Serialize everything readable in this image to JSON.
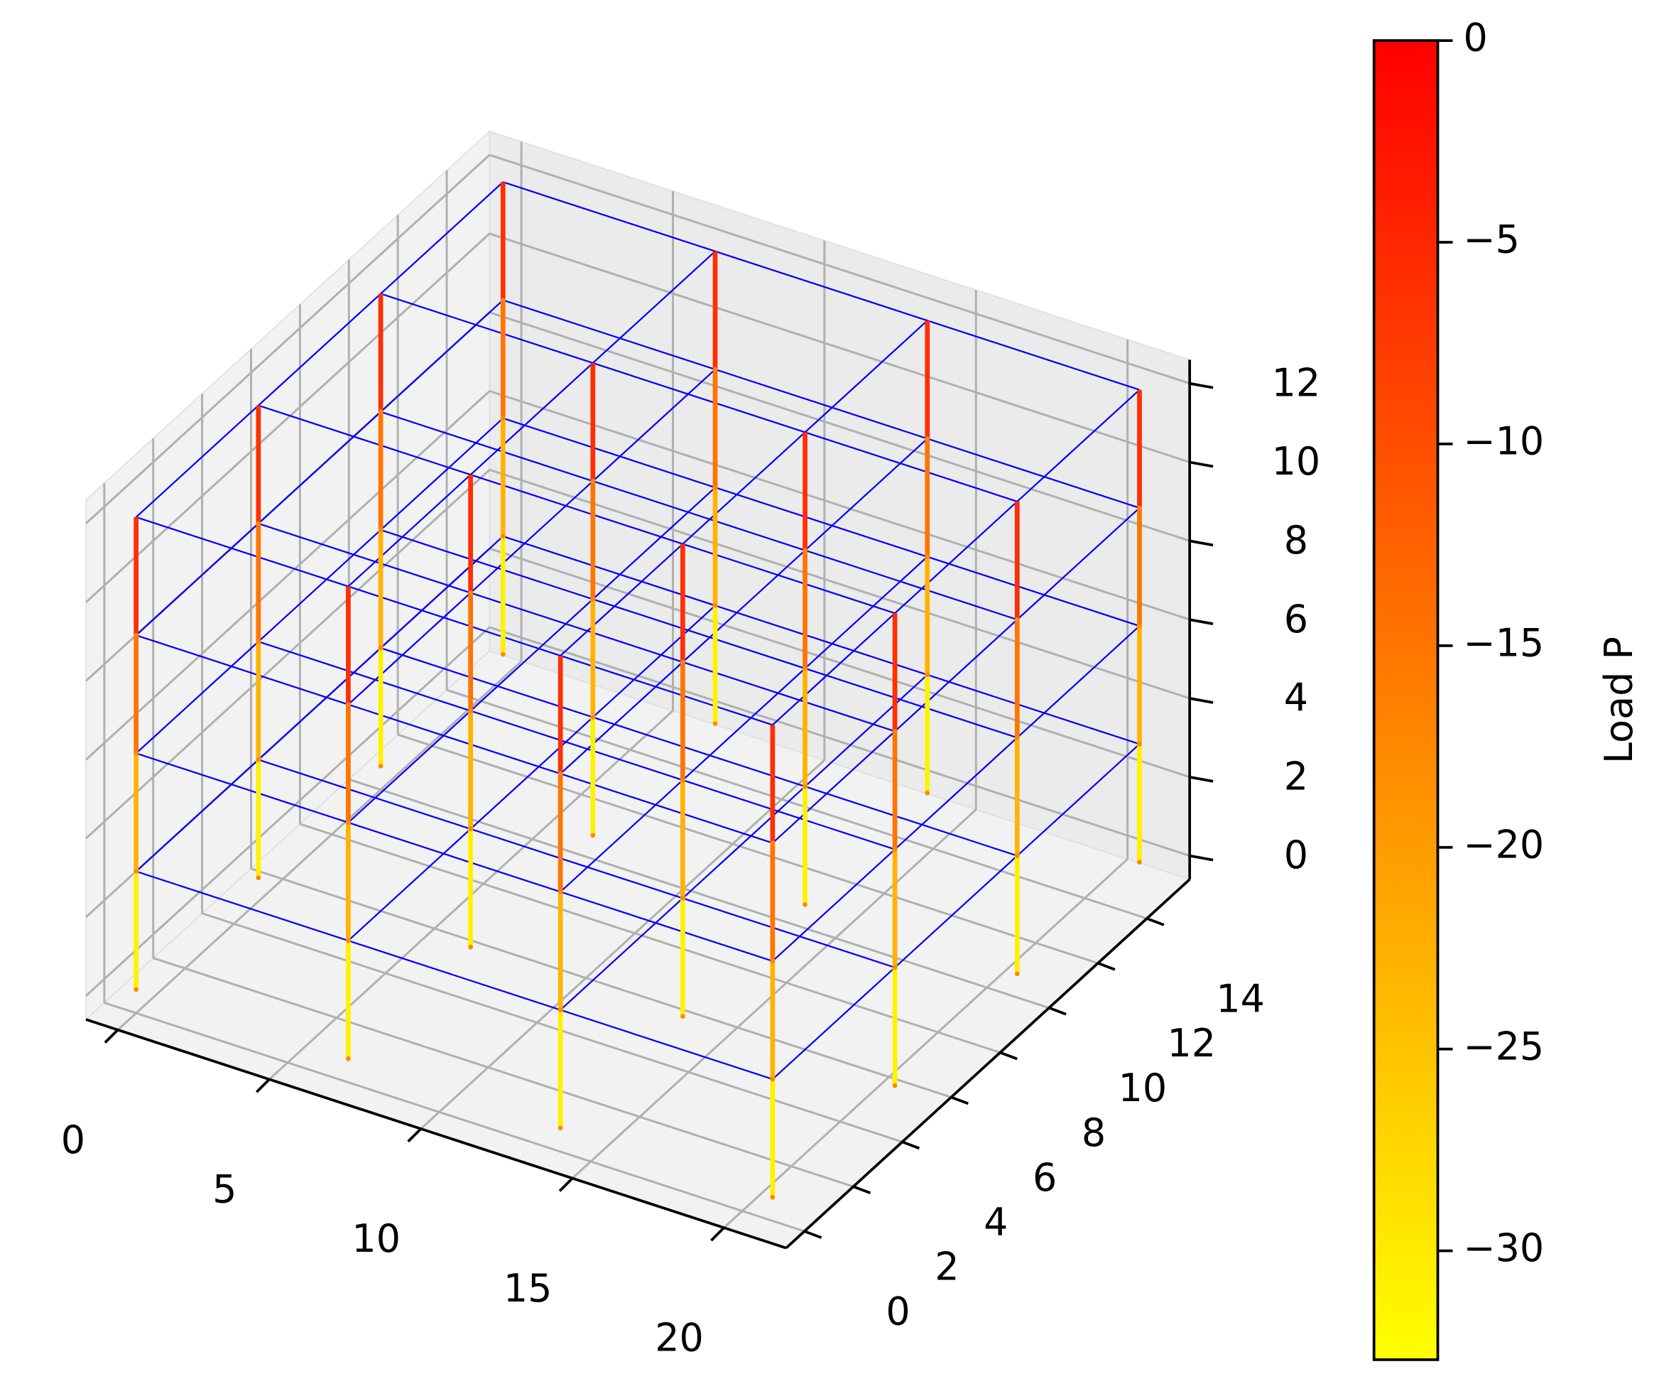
{
  "chart_data": {
    "type": "frame3d",
    "xlim": [
      -1.05,
      22.05
    ],
    "ylim": [
      -0.75,
      15.75
    ],
    "zlim": [
      -0.6,
      12.6
    ],
    "xticks": [
      0,
      5,
      10,
      15,
      20
    ],
    "yticks": [
      0,
      2,
      4,
      6,
      8,
      10,
      12,
      14
    ],
    "zticks": [
      0,
      2,
      4,
      6,
      8,
      10,
      12
    ],
    "columns_x": [
      0,
      7,
      14,
      21
    ],
    "columns_y": [
      0,
      5,
      10,
      15
    ],
    "levels": [
      0,
      3,
      6,
      9,
      12
    ],
    "story_loads": [
      -31,
      -23,
      -15,
      -6
    ],
    "beam_color": "#0000ff",
    "grid": true,
    "colorbar": {
      "label": "Load P",
      "clim": [
        -32.7,
        0
      ],
      "colors": [
        "#ffff00",
        "#ff0000"
      ],
      "ticks": [
        {
          "value": 0,
          "label": "0"
        },
        {
          "value": -5,
          "label": "−5"
        },
        {
          "value": -10,
          "label": "−10"
        },
        {
          "value": -15,
          "label": "−15"
        },
        {
          "value": -20,
          "label": "−20"
        },
        {
          "value": -25,
          "label": "−25"
        },
        {
          "value": -30,
          "label": "−30"
        }
      ]
    }
  }
}
